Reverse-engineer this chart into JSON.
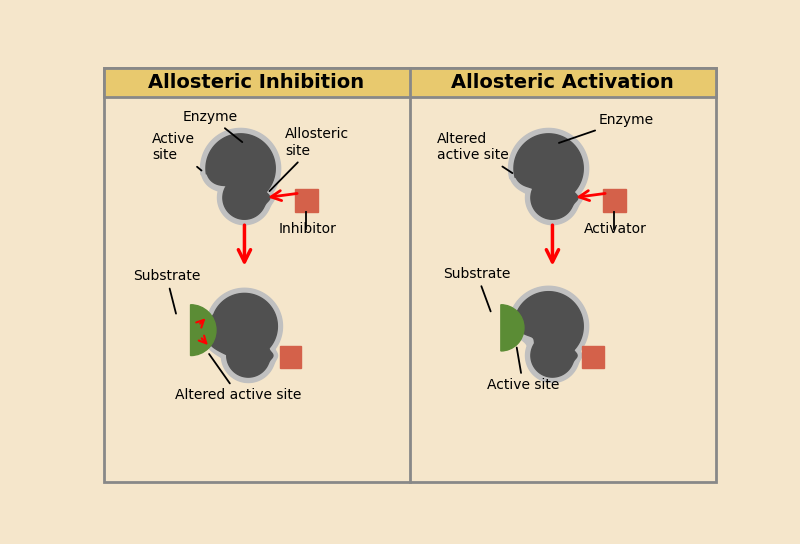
{
  "bg_color": "#f5e6cb",
  "header_color": "#e8c96e",
  "border_color": "#888888",
  "dark_gray": "#505050",
  "light_gray": "#c0c0c0",
  "green_color": "#5b8c35",
  "orange_red": "#d4614a",
  "title_left": "Allosteric Inhibition",
  "title_right": "Allosteric Activation",
  "label_enzyme_l": "Enzyme",
  "label_active_site_l": "Active\nsite",
  "label_allosteric_site": "Allosteric\nsite",
  "label_inhibitor": "Inhibitor",
  "label_substrate_l": "Substrate",
  "label_altered_active_site_l": "Altered active site",
  "label_enzyme_r": "Enzyme",
  "label_altered_active_site_r": "Altered\nactive site",
  "label_activator": "Activator",
  "label_substrate_r": "Substrate",
  "label_active_site_r": "Active site"
}
